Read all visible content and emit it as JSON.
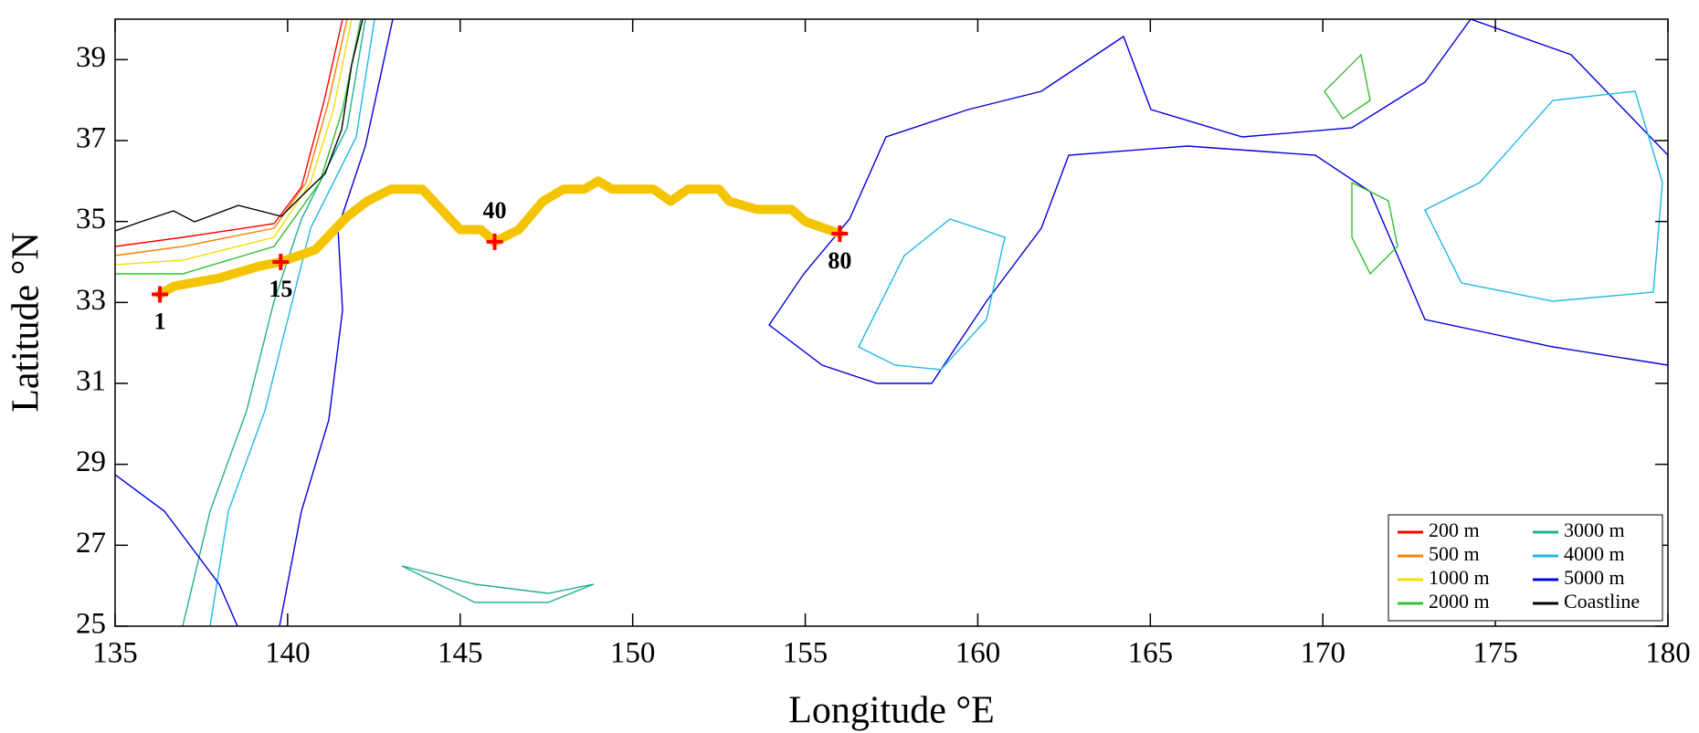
{
  "chart_data": {
    "type": "map",
    "xlabel": "Longitude °E",
    "ylabel": "Latitude °N",
    "xlim": [
      135,
      180
    ],
    "ylim": [
      25,
      40
    ],
    "xticks": [
      135,
      140,
      145,
      150,
      155,
      160,
      165,
      170,
      175,
      180
    ],
    "yticks": [
      25,
      27,
      29,
      31,
      33,
      35,
      37,
      39
    ],
    "x": [
      136.3,
      136.7,
      138,
      139.2,
      139.8,
      140.8,
      141.7,
      142.3,
      143,
      143.9,
      145,
      145.6,
      146,
      146.7,
      147.4,
      148,
      148.6,
      149,
      149.4,
      150.6,
      151.1,
      151.6,
      152.5,
      152.8,
      153.6,
      154.6,
      155,
      156
    ],
    "series": [
      {
        "color": "#f5c400",
        "values": [
          33.2,
          33.4,
          33.6,
          33.9,
          34.0,
          34.3,
          35.1,
          35.5,
          35.8,
          35.8,
          34.8,
          34.8,
          34.5,
          34.8,
          35.5,
          35.8,
          35.8,
          36.0,
          35.8,
          35.8,
          35.5,
          35.8,
          35.8,
          35.5,
          35.3,
          35.3,
          35.0,
          34.7
        ]
      }
    ],
    "stations": {
      "color": "#ff0000",
      "labels": [
        "1",
        "15",
        "40",
        "80"
      ],
      "x": [
        136.3,
        139.8,
        146.0,
        156.0
      ],
      "y": [
        33.2,
        34.0,
        34.5,
        34.7
      ]
    },
    "legend": [
      {
        "name": "200 m",
        "color": "#ff0000"
      },
      {
        "name": "500 m",
        "color": "#ff7f00"
      },
      {
        "name": "1000 m",
        "color": "#f0e000"
      },
      {
        "name": "2000 m",
        "color": "#30c030"
      },
      {
        "name": "3000 m",
        "color": "#20b090"
      },
      {
        "name": "4000 m",
        "color": "#20b8e8"
      },
      {
        "name": "5000 m",
        "color": "#0000e0"
      },
      {
        "name": "Coastline",
        "color": "#000000"
      }
    ],
    "legend_position": "lower right"
  }
}
